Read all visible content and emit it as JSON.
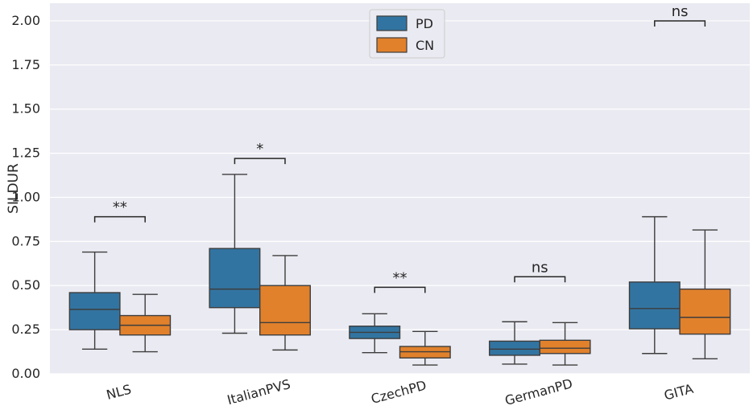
{
  "chart_data": {
    "type": "box",
    "ylabel": "SILDUR",
    "xlabel": "",
    "ylim": [
      0,
      2.1
    ],
    "yticks": [
      "0.00",
      "0.25",
      "0.50",
      "0.75",
      "1.00",
      "1.25",
      "1.50",
      "1.75",
      "2.00"
    ],
    "categories": [
      "NLS",
      "ItalianPVS",
      "CzechPD",
      "GermanPD",
      "GITA"
    ],
    "legend": {
      "position": "top-center"
    },
    "series": [
      {
        "name": "PD",
        "color": "#3274a1",
        "boxes": [
          {
            "whislo": 0.14,
            "q1": 0.25,
            "med": 0.365,
            "q3": 0.46,
            "whishi": 0.69
          },
          {
            "whislo": 0.23,
            "q1": 0.375,
            "med": 0.48,
            "q3": 0.71,
            "whishi": 1.13
          },
          {
            "whislo": 0.12,
            "q1": 0.2,
            "med": 0.235,
            "q3": 0.27,
            "whishi": 0.34
          },
          {
            "whislo": 0.055,
            "q1": 0.105,
            "med": 0.14,
            "q3": 0.185,
            "whishi": 0.295
          },
          {
            "whislo": 0.115,
            "q1": 0.255,
            "med": 0.37,
            "q3": 0.52,
            "whishi": 0.89
          }
        ]
      },
      {
        "name": "CN",
        "color": "#e1812c",
        "boxes": [
          {
            "whislo": 0.125,
            "q1": 0.22,
            "med": 0.275,
            "q3": 0.33,
            "whishi": 0.45
          },
          {
            "whislo": 0.135,
            "q1": 0.22,
            "med": 0.29,
            "q3": 0.5,
            "whishi": 0.67
          },
          {
            "whislo": 0.05,
            "q1": 0.09,
            "med": 0.125,
            "q3": 0.155,
            "whishi": 0.24
          },
          {
            "whislo": 0.05,
            "q1": 0.115,
            "med": 0.145,
            "q3": 0.19,
            "whishi": 0.29
          },
          {
            "whislo": 0.085,
            "q1": 0.225,
            "med": 0.32,
            "q3": 0.48,
            "whishi": 0.815
          }
        ]
      }
    ],
    "annotations": [
      {
        "category": "NLS",
        "text": "**",
        "y": 0.89
      },
      {
        "category": "ItalianPVS",
        "text": "*",
        "y": 1.22
      },
      {
        "category": "CzechPD",
        "text": "**",
        "y": 0.49
      },
      {
        "category": "GermanPD",
        "text": "ns",
        "y": 0.55
      },
      {
        "category": "GITA",
        "text": "ns",
        "y": 2.0
      }
    ]
  }
}
